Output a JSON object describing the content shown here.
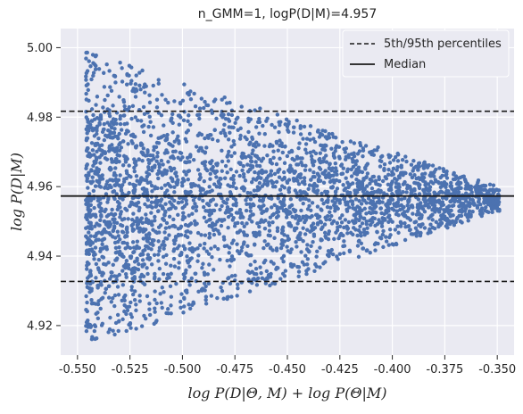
{
  "chart_data": {
    "type": "scatter",
    "title": "n_GMM=1, logP(D|M)=4.957",
    "xlabel": "log P(D|Θ, M) + log P(Θ|M)",
    "ylabel": "log P(D|M)",
    "xlim": [
      -0.558,
      -0.342
    ],
    "ylim": [
      4.9115,
      5.0055
    ],
    "xticks": [
      "-0.550",
      "-0.525",
      "-0.500",
      "-0.475",
      "-0.450",
      "-0.425",
      "-0.400",
      "-0.375",
      "-0.350"
    ],
    "yticks": [
      "4.92",
      "4.94",
      "4.96",
      "4.98",
      "5.00"
    ],
    "grid": true,
    "legend_placement": "top-right",
    "colors": {
      "points": "#4c72b0",
      "background": "#eaeaf2",
      "grid": "#ffffff",
      "lines": "#1a1a1a"
    },
    "series": [
      {
        "kind": "scatter",
        "points": []
      }
    ],
    "scatter_envelope": {
      "x_start": -0.546,
      "x_end": -0.349,
      "y_center": 4.9565,
      "y_lower_at_start": 4.9165,
      "y_upper_at_start": 5.0015,
      "y_lower_at_end": 4.953,
      "y_upper_at_end": 4.96,
      "y_upper_peak": 4.9985,
      "y_lower_peak": 4.918,
      "n_points": 3200
    },
    "reference_lines": [
      {
        "name": "5th/95th percentiles",
        "style": "dashed",
        "values": [
          4.9327,
          4.9817
        ]
      },
      {
        "name": "Median",
        "style": "solid",
        "values": [
          4.9573
        ]
      }
    ],
    "legend": [
      {
        "label": "5th/95th percentiles",
        "style": "dashed"
      },
      {
        "label": "Median",
        "style": "solid"
      }
    ]
  }
}
